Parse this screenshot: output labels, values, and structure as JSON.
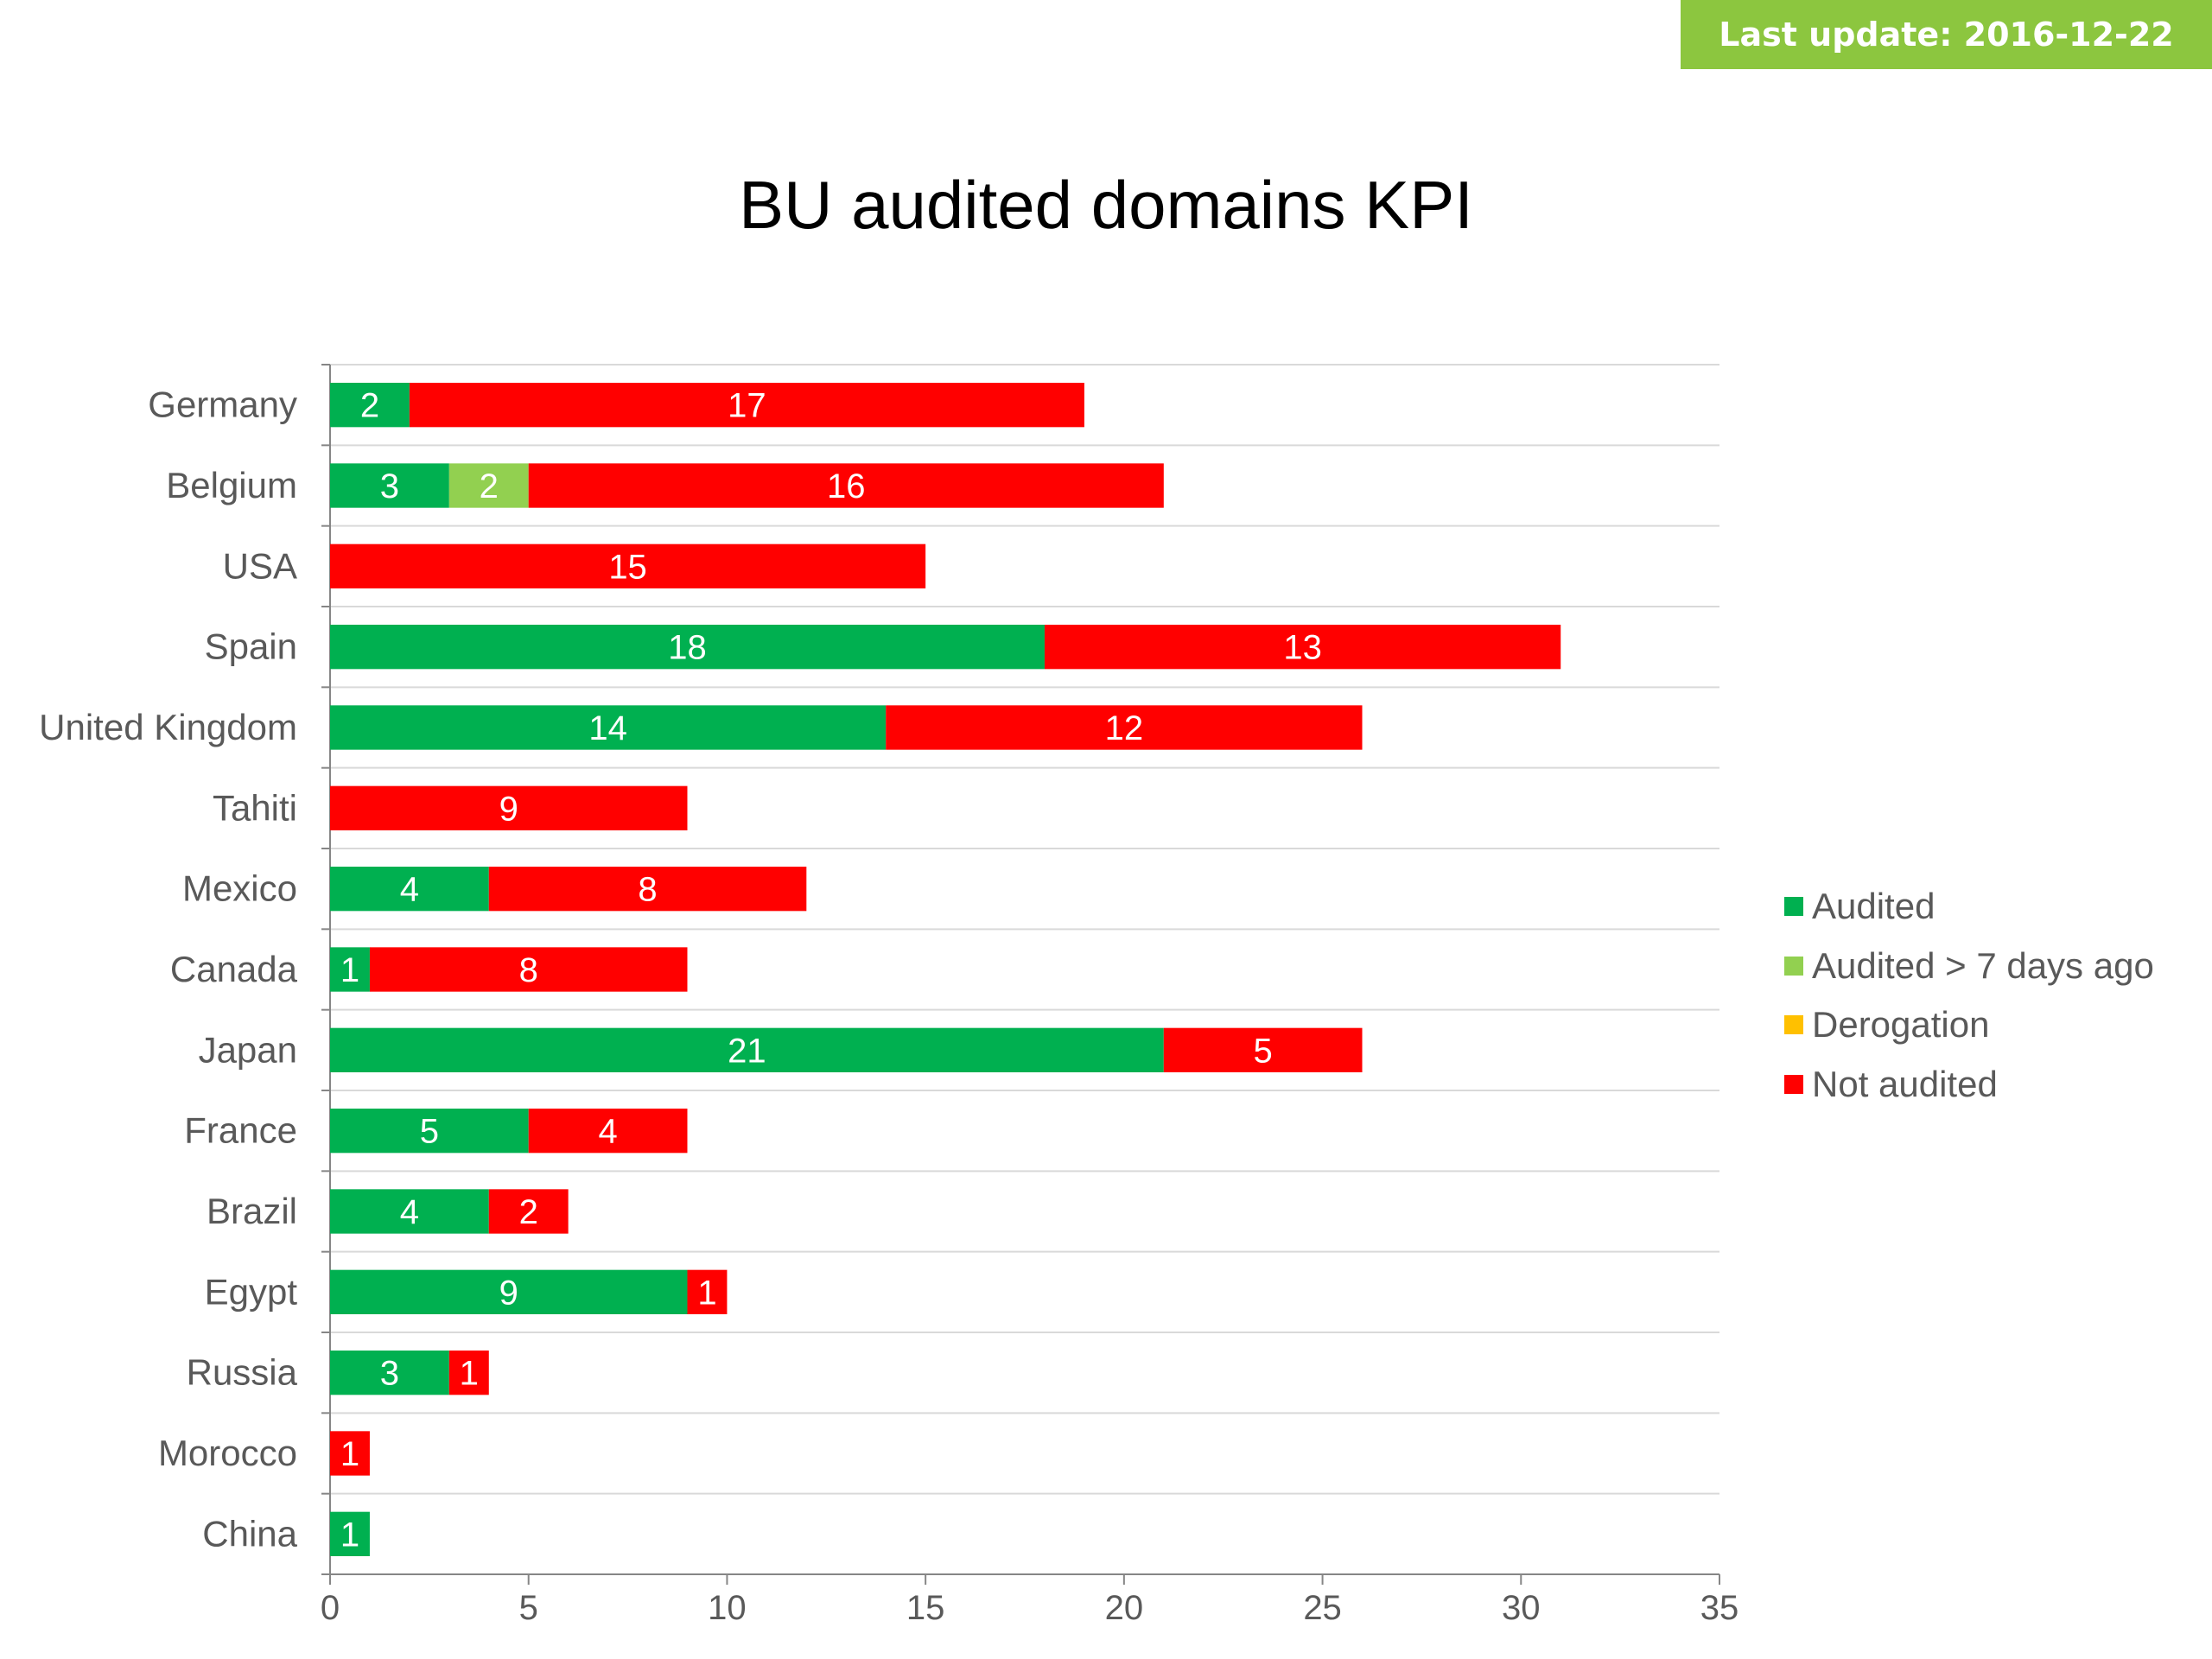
{
  "badge": {
    "text": "Last update: 2016-12-22"
  },
  "chart_data": {
    "type": "bar",
    "orientation": "horizontal",
    "stacked": true,
    "title": "BU audited domains KPI",
    "categories": [
      "Germany",
      "Belgium",
      "USA",
      "Spain",
      "United Kingdom",
      "Tahiti",
      "Mexico",
      "Canada",
      "Japan",
      "France",
      "Brazil",
      "Egypt",
      "Russia",
      "Morocco",
      "China"
    ],
    "series": [
      {
        "name": "Audited",
        "color": "#00b050",
        "values": [
          2,
          3,
          0,
          18,
          14,
          0,
          4,
          1,
          21,
          5,
          4,
          9,
          3,
          0,
          1
        ]
      },
      {
        "name": "Audited > 7 days ago",
        "color": "#92d050",
        "values": [
          0,
          2,
          0,
          0,
          0,
          0,
          0,
          0,
          0,
          0,
          0,
          0,
          0,
          0,
          0
        ]
      },
      {
        "name": "Derogation",
        "color": "#ffc000",
        "values": [
          0,
          0,
          0,
          0,
          0,
          0,
          0,
          0,
          0,
          0,
          0,
          0,
          0,
          0,
          0
        ]
      },
      {
        "name": "Not audited",
        "color": "#ff0000",
        "values": [
          17,
          16,
          15,
          13,
          12,
          9,
          8,
          8,
          5,
          4,
          2,
          1,
          1,
          1,
          0
        ]
      }
    ],
    "xlim": [
      0,
      35
    ],
    "xticks": [
      0,
      5,
      10,
      15,
      20,
      25,
      30,
      35
    ],
    "grid": true,
    "data_labels": true,
    "legend_position": "right"
  }
}
